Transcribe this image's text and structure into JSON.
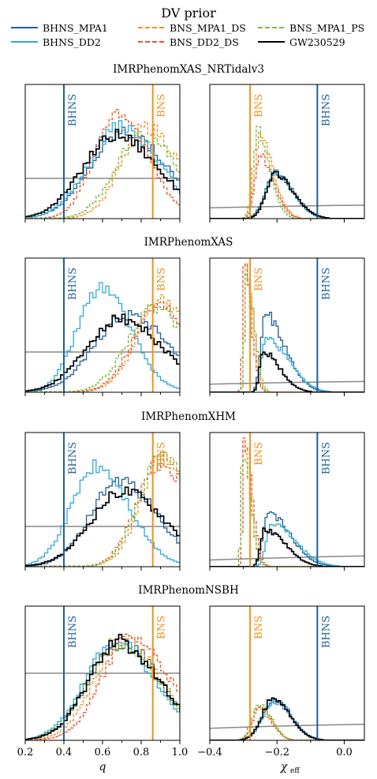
{
  "legend": {
    "title": "DV prior",
    "entries": [
      {
        "name": "BHNS_MPA1",
        "color": "#1f5f96",
        "dash": "solid"
      },
      {
        "name": "BNS_MPA1_DS",
        "color": "#f0921e",
        "dash": "dashed"
      },
      {
        "name": "BNS_MPA1_PS",
        "color": "#7cbb3c",
        "dash": "dashed"
      },
      {
        "name": "BHNS_DD2",
        "color": "#2fa8dc",
        "dash": "solid"
      },
      {
        "name": "BNS_DD2_DS",
        "color": "#e8542a",
        "dash": "dashed"
      },
      {
        "name": "GW230529",
        "color": "#000000",
        "dash": "solid"
      }
    ]
  },
  "colors": {
    "BHNS_MPA1": "#1f5f96",
    "BHNS_DD2": "#2fa8dc",
    "BNS_MPA1_DS": "#f0921e",
    "BNS_DD2_DS": "#e8542a",
    "BNS_MPA1_PS": "#7cbb3c",
    "GW230529": "#000000",
    "prior": "#888888",
    "bhns_line": "#1f5f96",
    "bns_line": "#f0921e"
  },
  "row_titles": [
    "IMRPhenomXAS_NRTidalv3",
    "IMRPhenomXAS",
    "IMRPhenomXHM",
    "IMRPhenomNSBH"
  ],
  "x_labels": {
    "q": "q",
    "chi": "χ",
    "chi_sub": "eff"
  },
  "tick_labels": {
    "q": [
      "0.2",
      "0.4",
      "0.6",
      "0.8",
      "1.0"
    ],
    "chi": [
      "−0.4",
      "−0.2",
      "0.0"
    ]
  },
  "line_labels": {
    "bhns": "BHNS",
    "bns": "BNS"
  },
  "chart_data": [
    {
      "type": "line",
      "variable": "q",
      "xlim": [
        0.2,
        1.0
      ],
      "vlines": {
        "BHNS": 0.4,
        "BNS": 0.86
      },
      "tick_values": [
        0.2,
        0.4,
        0.6,
        0.8,
        1.0
      ],
      "rows": [
        {
          "title": "IMRPhenomXAS_NRTidalv3",
          "prior": 0.3,
          "series": [
            {
              "name": "BHNS_MPA1",
              "mode": 0.7,
              "width": 0.17,
              "peak": 0.65
            },
            {
              "name": "BHNS_DD2",
              "mode": 0.68,
              "width": 0.16,
              "peak": 0.68
            },
            {
              "name": "BNS_MPA1_DS",
              "mode": 0.82,
              "width": 0.13,
              "peak": 0.68
            },
            {
              "name": "BNS_DD2_DS",
              "mode": 0.67,
              "width": 0.12,
              "peak": 0.8
            },
            {
              "name": "BNS_MPA1_PS",
              "mode": 0.8,
              "width": 0.14,
              "peak": 0.63
            },
            {
              "name": "GW230529",
              "mode": 0.66,
              "width": 0.17,
              "peak": 0.62
            }
          ]
        },
        {
          "title": "IMRPhenomXAS",
          "prior": 0.3,
          "series": [
            {
              "name": "BHNS_MPA1",
              "mode": 0.72,
              "width": 0.17,
              "peak": 0.58
            },
            {
              "name": "BHNS_DD2",
              "mode": 0.58,
              "width": 0.12,
              "peak": 0.78
            },
            {
              "name": "BNS_MPA1_DS",
              "mode": 0.9,
              "width": 0.13,
              "peak": 0.68
            },
            {
              "name": "BNS_DD2_DS",
              "mode": 0.88,
              "width": 0.13,
              "peak": 0.65
            },
            {
              "name": "BNS_MPA1_PS",
              "mode": 0.86,
              "width": 0.14,
              "peak": 0.62
            },
            {
              "name": "GW230529",
              "mode": 0.68,
              "width": 0.17,
              "peak": 0.55
            }
          ]
        },
        {
          "title": "IMRPhenomXHM",
          "prior": 0.3,
          "series": [
            {
              "name": "BHNS_MPA1",
              "mode": 0.68,
              "width": 0.15,
              "peak": 0.64
            },
            {
              "name": "BHNS_DD2",
              "mode": 0.56,
              "width": 0.13,
              "peak": 0.74
            },
            {
              "name": "BNS_MPA1_DS",
              "mode": 0.91,
              "width": 0.12,
              "peak": 0.8
            },
            {
              "name": "BNS_DD2_DS",
              "mode": 0.89,
              "width": 0.12,
              "peak": 0.78
            },
            {
              "name": "BNS_MPA1_PS",
              "mode": 0.9,
              "width": 0.12,
              "peak": 0.82
            },
            {
              "name": "GW230529",
              "mode": 0.7,
              "width": 0.17,
              "peak": 0.56
            }
          ]
        },
        {
          "title": "IMRPhenomNSBH",
          "prior": 0.5,
          "series": [
            {
              "name": "BHNS_MPA1",
              "mode": 0.68,
              "width": 0.16,
              "peak": 0.74
            },
            {
              "name": "BHNS_DD2",
              "mode": 0.66,
              "width": 0.16,
              "peak": 0.72
            },
            {
              "name": "BNS_MPA1_DS",
              "mode": 0.7,
              "width": 0.15,
              "peak": 0.74
            },
            {
              "name": "BNS_DD2_DS",
              "mode": 0.74,
              "width": 0.15,
              "peak": 0.78
            },
            {
              "name": "BNS_MPA1_PS",
              "mode": 0.67,
              "width": 0.16,
              "peak": 0.72
            },
            {
              "name": "GW230529",
              "mode": 0.68,
              "width": 0.16,
              "peak": 0.73
            }
          ]
        }
      ]
    },
    {
      "type": "line",
      "variable": "chi_eff",
      "xlim": [
        -0.4,
        0.06
      ],
      "vlines": {
        "BNS": -0.28,
        "BHNS": -0.08
      },
      "tick_values": [
        -0.4,
        -0.2,
        0.0
      ],
      "rows": [
        {
          "title": "IMRPhenomXAS_NRTidalv3",
          "prior_start": 0.08,
          "prior_end": 0.1,
          "series": [
            {
              "name": "BHNS_MPA1",
              "mode": -0.21,
              "wl": 0.028,
              "wr": 0.055,
              "peak": 0.34
            },
            {
              "name": "BHNS_DD2",
              "mode": -0.21,
              "wl": 0.026,
              "wr": 0.052,
              "peak": 0.35
            },
            {
              "name": "BNS_MPA1_DS",
              "mode": -0.255,
              "wl": 0.014,
              "wr": 0.04,
              "peak": 0.6
            },
            {
              "name": "BNS_DD2_DS",
              "mode": -0.255,
              "wl": 0.015,
              "wr": 0.04,
              "peak": 0.48
            },
            {
              "name": "BNS_MPA1_PS",
              "mode": -0.26,
              "wl": 0.014,
              "wr": 0.035,
              "peak": 0.66
            },
            {
              "name": "GW230529",
              "mode": -0.21,
              "wl": 0.026,
              "wr": 0.055,
              "peak": 0.33
            }
          ]
        },
        {
          "title": "IMRPhenomXAS",
          "prior_start": 0.06,
          "prior_end": 0.08,
          "series": [
            {
              "name": "BHNS_MPA1",
              "mode": -0.24,
              "wl": 0.012,
              "wr": 0.06,
              "peak": 0.58
            },
            {
              "name": "BHNS_DD2",
              "mode": -0.235,
              "wl": 0.014,
              "wr": 0.065,
              "peak": 0.4
            },
            {
              "name": "BNS_MPA1_DS",
              "mode": -0.295,
              "wl": 0.005,
              "wr": 0.02,
              "peak": 0.95
            },
            {
              "name": "BNS_DD2_DS",
              "mode": -0.3,
              "wl": 0.005,
              "wr": 0.02,
              "peak": 0.92
            },
            {
              "name": "BNS_MPA1_PS",
              "mode": -0.295,
              "wl": 0.005,
              "wr": 0.022,
              "peak": 0.9
            },
            {
              "name": "GW230529",
              "mode": -0.245,
              "wl": 0.01,
              "wr": 0.05,
              "peak": 0.3
            }
          ]
        },
        {
          "title": "IMRPhenomXHM",
          "prior_start": 0.05,
          "prior_end": 0.08,
          "series": [
            {
              "name": "BHNS_MPA1",
              "mode": -0.23,
              "wl": 0.015,
              "wr": 0.065,
              "peak": 0.4
            },
            {
              "name": "BHNS_DD2",
              "mode": -0.22,
              "wl": 0.015,
              "wr": 0.07,
              "peak": 0.32
            },
            {
              "name": "BNS_MPA1_DS",
              "mode": -0.305,
              "wl": 0.005,
              "wr": 0.022,
              "peak": 0.92
            },
            {
              "name": "BNS_DD2_DS",
              "mode": -0.3,
              "wl": 0.005,
              "wr": 0.022,
              "peak": 0.96
            },
            {
              "name": "BNS_MPA1_PS",
              "mode": -0.305,
              "wl": 0.005,
              "wr": 0.022,
              "peak": 0.88
            },
            {
              "name": "GW230529",
              "mode": -0.24,
              "wl": 0.012,
              "wr": 0.06,
              "peak": 0.28
            }
          ]
        },
        {
          "title": "IMRPhenomNSBH",
          "prior_start": 0.09,
          "prior_end": 0.12,
          "series": [
            {
              "name": "BHNS_MPA1",
              "mode": -0.21,
              "wl": 0.035,
              "wr": 0.05,
              "peak": 0.3
            },
            {
              "name": "BHNS_DD2",
              "mode": -0.21,
              "wl": 0.035,
              "wr": 0.05,
              "peak": 0.29
            },
            {
              "name": "BNS_MPA1_DS",
              "mode": -0.255,
              "wl": 0.02,
              "wr": 0.035,
              "peak": 0.26
            },
            {
              "name": "BNS_DD2_DS",
              "mode": -0.255,
              "wl": 0.02,
              "wr": 0.035,
              "peak": 0.24
            },
            {
              "name": "BNS_MPA1_PS",
              "mode": -0.255,
              "wl": 0.022,
              "wr": 0.035,
              "peak": 0.27
            },
            {
              "name": "GW230529",
              "mode": -0.215,
              "wl": 0.032,
              "wr": 0.05,
              "peak": 0.31
            }
          ]
        }
      ]
    }
  ]
}
